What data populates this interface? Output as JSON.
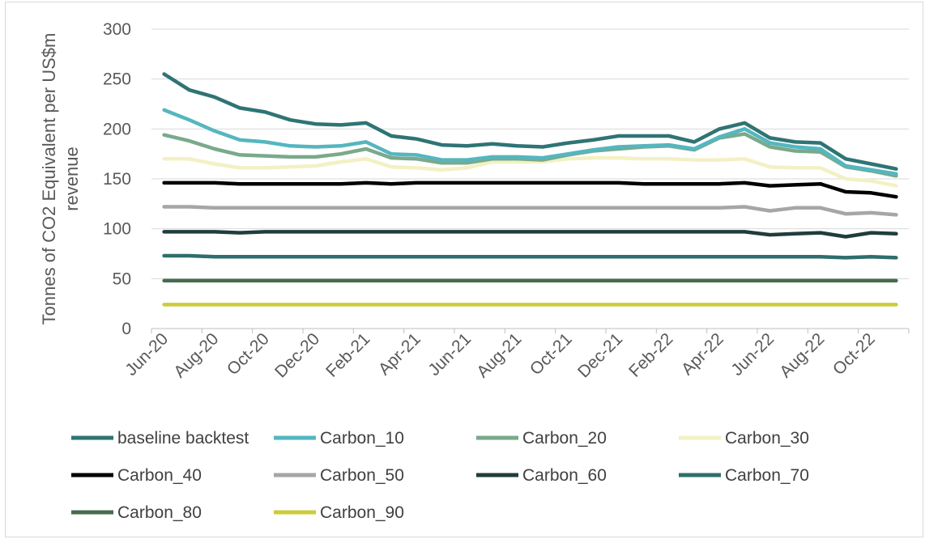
{
  "chart_data": {
    "type": "line",
    "ylabel": "Tonnes of CO2 Equivalent per US$m revenue",
    "ylabel_lines": [
      "Tonnes of CO2 Equivalent per US$m",
      "revenue"
    ],
    "ylim": [
      0,
      300
    ],
    "yticks": [
      0,
      50,
      100,
      150,
      200,
      250,
      300
    ],
    "grid": true,
    "legend_position": "bottom",
    "x": [
      "Jun-20",
      "Jul-20",
      "Aug-20",
      "Sep-20",
      "Oct-20",
      "Nov-20",
      "Dec-20",
      "Jan-21",
      "Feb-21",
      "Mar-21",
      "Apr-21",
      "May-21",
      "Jun-21",
      "Jul-21",
      "Aug-21",
      "Sep-21",
      "Oct-21",
      "Nov-21",
      "Dec-21",
      "Jan-22",
      "Feb-22",
      "Mar-22",
      "Apr-22",
      "May-22",
      "Jun-22",
      "Jul-22",
      "Aug-22",
      "Sep-22",
      "Oct-22",
      "Nov-22"
    ],
    "xtick_labels": [
      "Jun-20",
      "Aug-20",
      "Oct-20",
      "Dec-20",
      "Feb-21",
      "Apr-21",
      "Jun-21",
      "Aug-21",
      "Oct-21",
      "Dec-21",
      "Feb-22",
      "Apr-22",
      "Jun-22",
      "Aug-22",
      "Oct-22"
    ],
    "series": [
      {
        "name": "baseline backtest",
        "color": "#2f7475",
        "values": [
          255,
          239,
          232,
          221,
          217,
          209,
          205,
          204,
          206,
          193,
          190,
          184,
          183,
          185,
          183,
          182,
          186,
          189,
          193,
          193,
          193,
          187,
          200,
          206,
          191,
          187,
          186,
          170,
          165,
          160
        ]
      },
      {
        "name": "Carbon_10",
        "color": "#55b6bf",
        "values": [
          219,
          209,
          198,
          189,
          187,
          183,
          182,
          183,
          187,
          175,
          174,
          169,
          169,
          172,
          172,
          171,
          175,
          179,
          182,
          183,
          184,
          180,
          192,
          200,
          186,
          182,
          180,
          163,
          159,
          155
        ]
      },
      {
        "name": "Carbon_20",
        "color": "#7aa98b",
        "values": [
          194,
          188,
          180,
          174,
          173,
          172,
          172,
          175,
          180,
          171,
          170,
          166,
          166,
          170,
          170,
          169,
          174,
          178,
          180,
          182,
          183,
          179,
          191,
          195,
          182,
          178,
          177,
          162,
          158,
          153
        ]
      },
      {
        "name": "Carbon_30",
        "color": "#f3f1c4",
        "values": [
          170,
          170,
          165,
          161,
          161,
          162,
          163,
          167,
          170,
          162,
          161,
          159,
          161,
          167,
          167,
          167,
          170,
          171,
          171,
          170,
          170,
          169,
          169,
          170,
          162,
          161,
          161,
          150,
          148,
          143
        ]
      },
      {
        "name": "Carbon_40",
        "color": "#000000",
        "values": [
          146,
          146,
          146,
          145,
          145,
          145,
          145,
          145,
          146,
          145,
          146,
          146,
          146,
          146,
          146,
          146,
          146,
          146,
          146,
          145,
          145,
          145,
          145,
          146,
          143,
          144,
          145,
          137,
          136,
          132
        ]
      },
      {
        "name": "Carbon_50",
        "color": "#a6a6a6",
        "values": [
          122,
          122,
          121,
          121,
          121,
          121,
          121,
          121,
          121,
          121,
          121,
          121,
          121,
          121,
          121,
          121,
          121,
          121,
          121,
          121,
          121,
          121,
          121,
          122,
          118,
          121,
          121,
          115,
          116,
          114
        ]
      },
      {
        "name": "Carbon_60",
        "color": "#1f3d3c",
        "values": [
          97,
          97,
          97,
          96,
          97,
          97,
          97,
          97,
          97,
          97,
          97,
          97,
          97,
          97,
          97,
          97,
          97,
          97,
          97,
          97,
          97,
          97,
          97,
          97,
          94,
          95,
          96,
          92,
          96,
          95
        ]
      },
      {
        "name": "Carbon_70",
        "color": "#2e6e6c",
        "values": [
          73,
          73,
          72,
          72,
          72,
          72,
          72,
          72,
          72,
          72,
          72,
          72,
          72,
          72,
          72,
          72,
          72,
          72,
          72,
          72,
          72,
          72,
          72,
          72,
          72,
          72,
          72,
          71,
          72,
          71
        ]
      },
      {
        "name": "Carbon_80",
        "color": "#466b4f",
        "values": [
          48,
          48,
          48,
          48,
          48,
          48,
          48,
          48,
          48,
          48,
          48,
          48,
          48,
          48,
          48,
          48,
          48,
          48,
          48,
          48,
          48,
          48,
          48,
          48,
          48,
          48,
          48,
          48,
          48,
          48
        ]
      },
      {
        "name": "Carbon_90",
        "color": "#cccc3a",
        "values": [
          24,
          24,
          24,
          24,
          24,
          24,
          24,
          24,
          24,
          24,
          24,
          24,
          24,
          24,
          24,
          24,
          24,
          24,
          24,
          24,
          24,
          24,
          24,
          24,
          24,
          24,
          24,
          24,
          24,
          24
        ]
      }
    ]
  }
}
